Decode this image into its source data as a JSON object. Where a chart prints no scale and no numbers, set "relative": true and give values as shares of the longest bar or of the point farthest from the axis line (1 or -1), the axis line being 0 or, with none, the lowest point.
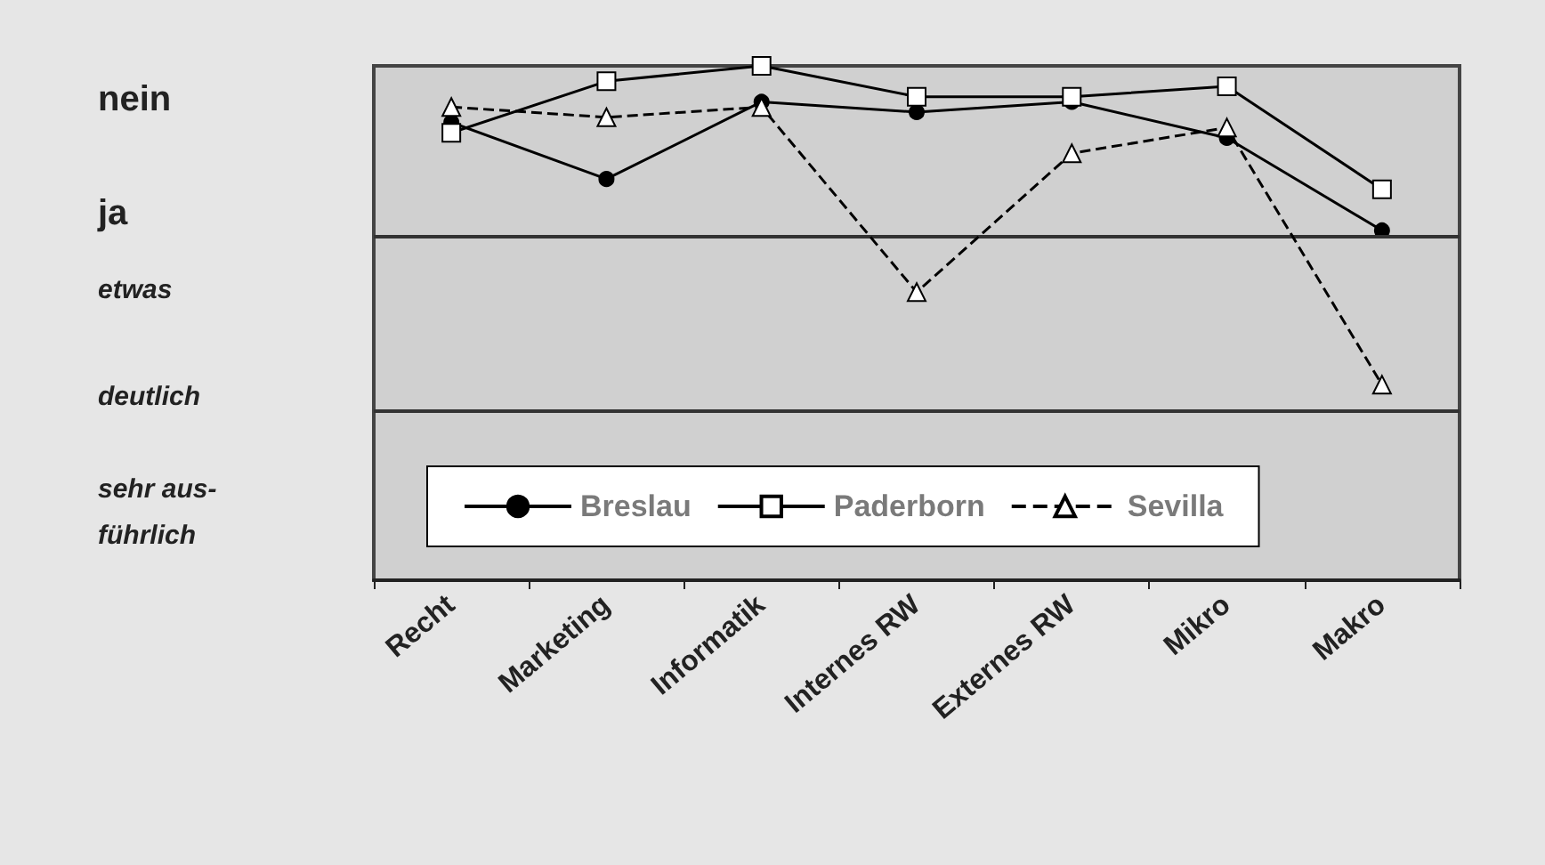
{
  "chart_data": {
    "type": "line",
    "relative": true,
    "categories": [
      "Recht",
      "Marketing",
      "Informatik",
      "Internes RW",
      "Externes RW",
      "Mikro",
      "Makro"
    ],
    "series": [
      {
        "name": "Breslau",
        "color": "#000000",
        "marker": "circle",
        "line_style": "solid",
        "values": [
          0.89,
          0.78,
          0.93,
          0.91,
          0.93,
          0.86,
          0.68
        ]
      },
      {
        "name": "Paderborn",
        "color": "#000000",
        "marker": "square",
        "line_style": "solid",
        "values": [
          0.87,
          0.97,
          1,
          0.94,
          0.94,
          0.96,
          0.76
        ]
      },
      {
        "name": "Sevilla",
        "color": "#000000",
        "marker": "triangle",
        "line_style": "dashed",
        "values": [
          0.92,
          0.9,
          0.92,
          0.56,
          0.83,
          0.88,
          0.38
        ]
      }
    ],
    "annotations": [
      "nein",
      "ja",
      "etwas",
      "deutlich",
      "sehr aus-\nführlich"
    ],
    "ref_lines": [
      {
        "axis": "y",
        "value": 0.33,
        "label": null
      },
      {
        "axis": "y",
        "value": 0.67,
        "label": null
      }
    ],
    "grid": false,
    "legend": "bottom"
  }
}
